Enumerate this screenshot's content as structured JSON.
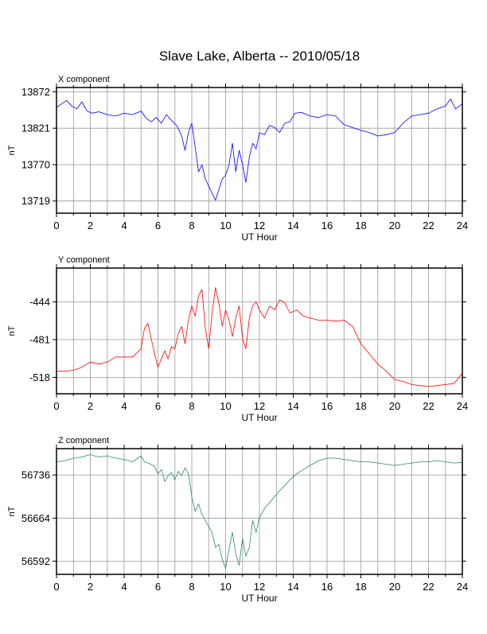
{
  "title": "Slave Lake, Alberta -- 2010/05/18",
  "chart_data": [
    {
      "type": "line",
      "panel_title": "X component",
      "xlabel": "UT Hour",
      "ylabel": "nT",
      "xlim": [
        0,
        24
      ],
      "ylim": [
        13702,
        13878
      ],
      "xticks": [
        0,
        2,
        4,
        6,
        8,
        10,
        12,
        14,
        16,
        18,
        20,
        22,
        24
      ],
      "yticks": [
        13719,
        13770,
        13821,
        13872
      ],
      "grid": true,
      "color": "#0000ff",
      "series": [
        {
          "x": [
            0,
            0.3,
            0.6,
            0.9,
            1.2,
            1.5,
            1.8,
            2.1,
            2.5,
            3,
            3.5,
            4,
            4.5,
            5,
            5.3,
            5.6,
            5.9,
            6.2,
            6.5,
            6.8,
            7.1,
            7.4,
            7.6,
            7.8,
            8.0,
            8.2,
            8.4,
            8.6,
            8.8,
            9.0,
            9.2,
            9.4,
            9.6,
            9.8,
            10.0,
            10.2,
            10.4,
            10.6,
            10.8,
            11.0,
            11.2,
            11.4,
            11.6,
            11.8,
            12.0,
            12.3,
            12.6,
            12.9,
            13.2,
            13.5,
            13.8,
            14.1,
            14.5,
            15,
            15.5,
            16,
            16.5,
            17,
            17.5,
            18,
            18.5,
            19,
            19.5,
            20,
            20.5,
            21,
            21.5,
            22,
            22.5,
            23,
            23.3,
            23.6,
            24
          ],
          "y": [
            13850,
            13855,
            13860,
            13852,
            13848,
            13858,
            13845,
            13842,
            13844,
            13840,
            13838,
            13842,
            13840,
            13845,
            13835,
            13830,
            13836,
            13828,
            13840,
            13832,
            13825,
            13810,
            13790,
            13815,
            13828,
            13795,
            13760,
            13770,
            13750,
            13740,
            13730,
            13720,
            13735,
            13750,
            13755,
            13770,
            13800,
            13760,
            13790,
            13770,
            13745,
            13780,
            13800,
            13792,
            13815,
            13812,
            13825,
            13822,
            13815,
            13828,
            13830,
            13842,
            13843,
            13838,
            13836,
            13840,
            13838,
            13826,
            13822,
            13818,
            13815,
            13810,
            13812,
            13815,
            13828,
            13838,
            13840,
            13842,
            13848,
            13852,
            13862,
            13848,
            13855
          ]
        }
      ]
    },
    {
      "type": "line",
      "panel_title": "Y component",
      "xlabel": "UT Hour",
      "ylabel": "nT",
      "xlim": [
        0,
        24
      ],
      "ylim": [
        -534,
        -411
      ],
      "xticks": [
        0,
        2,
        4,
        6,
        8,
        10,
        12,
        14,
        16,
        18,
        20,
        22,
        24
      ],
      "yticks": [
        -518,
        -481,
        -444
      ],
      "grid": true,
      "color": "#ff0000",
      "series": [
        {
          "x": [
            0,
            0.5,
            1,
            1.5,
            2,
            2.5,
            3,
            3.5,
            4,
            4.5,
            5,
            5.2,
            5.4,
            5.6,
            5.8,
            6.0,
            6.2,
            6.4,
            6.6,
            6.8,
            7.0,
            7.2,
            7.4,
            7.6,
            7.8,
            8.0,
            8.2,
            8.4,
            8.6,
            8.8,
            9.0,
            9.2,
            9.4,
            9.6,
            9.8,
            10.0,
            10.2,
            10.4,
            10.6,
            10.8,
            11.0,
            11.2,
            11.4,
            11.6,
            11.8,
            12.0,
            12.3,
            12.6,
            12.9,
            13.2,
            13.5,
            13.8,
            14.2,
            14.6,
            15,
            15.5,
            16,
            16.5,
            17,
            17.5,
            18,
            18.5,
            19,
            19.5,
            20,
            20.5,
            21,
            21.5,
            22,
            22.5,
            23,
            23.5,
            24
          ],
          "y": [
            -512,
            -512,
            -511,
            -508,
            -503,
            -505,
            -503,
            -498,
            -498,
            -498,
            -490,
            -470,
            -465,
            -480,
            -495,
            -508,
            -500,
            -492,
            -500,
            -488,
            -490,
            -475,
            -468,
            -485,
            -462,
            -448,
            -458,
            -438,
            -432,
            -470,
            -490,
            -455,
            -430,
            -445,
            -468,
            -452,
            -462,
            -478,
            -460,
            -448,
            -480,
            -490,
            -460,
            -448,
            -444,
            -452,
            -460,
            -448,
            -452,
            -442,
            -445,
            -455,
            -452,
            -458,
            -460,
            -462,
            -462,
            -463,
            -462,
            -468,
            -485,
            -495,
            -505,
            -512,
            -520,
            -522,
            -525,
            -526,
            -527,
            -526,
            -525,
            -524,
            -514
          ]
        }
      ]
    },
    {
      "type": "line",
      "panel_title": "Z component",
      "xlabel": "UT Hour",
      "ylabel": "nT",
      "xlim": [
        0,
        24
      ],
      "ylim": [
        56570,
        56780
      ],
      "xticks": [
        0,
        2,
        4,
        6,
        8,
        10,
        12,
        14,
        16,
        18,
        20,
        22,
        24
      ],
      "yticks": [
        56592,
        56664,
        56736
      ],
      "grid": true,
      "color": "#2e8b57",
      "series": [
        {
          "x": [
            0,
            0.5,
            1,
            1.5,
            2,
            2.5,
            3,
            3.5,
            4,
            4.5,
            5,
            5.2,
            5.5,
            5.8,
            6.0,
            6.2,
            6.4,
            6.6,
            6.8,
            7.0,
            7.2,
            7.4,
            7.6,
            7.8,
            8.0,
            8.2,
            8.4,
            8.6,
            8.8,
            9.0,
            9.2,
            9.4,
            9.6,
            9.8,
            10.0,
            10.2,
            10.4,
            10.6,
            10.8,
            11.0,
            11.2,
            11.4,
            11.6,
            11.8,
            12.0,
            12.3,
            12.6,
            12.9,
            13.2,
            13.5,
            13.8,
            14.2,
            14.6,
            15,
            15.5,
            16,
            16.5,
            17,
            17.5,
            18,
            18.5,
            19,
            19.5,
            20,
            20.5,
            21,
            21.5,
            22,
            22.5,
            23,
            23.5,
            24
          ],
          "y": [
            56758,
            56760,
            56764,
            56766,
            56770,
            56766,
            56768,
            56764,
            56762,
            56758,
            56768,
            56758,
            56755,
            56750,
            56738,
            56745,
            56725,
            56735,
            56740,
            56728,
            56742,
            56735,
            56748,
            56738,
            56700,
            56675,
            56688,
            56670,
            56660,
            56650,
            56640,
            56615,
            56620,
            56595,
            56580,
            56612,
            56640,
            56605,
            56585,
            56630,
            56600,
            56615,
            56660,
            56640,
            56665,
            56680,
            56690,
            56700,
            56710,
            56718,
            56728,
            56738,
            56745,
            56752,
            56760,
            56764,
            56764,
            56762,
            56760,
            56758,
            56758,
            56756,
            56754,
            56752,
            56754,
            56756,
            56758,
            56758,
            56760,
            56758,
            56756,
            56757
          ]
        }
      ]
    }
  ]
}
